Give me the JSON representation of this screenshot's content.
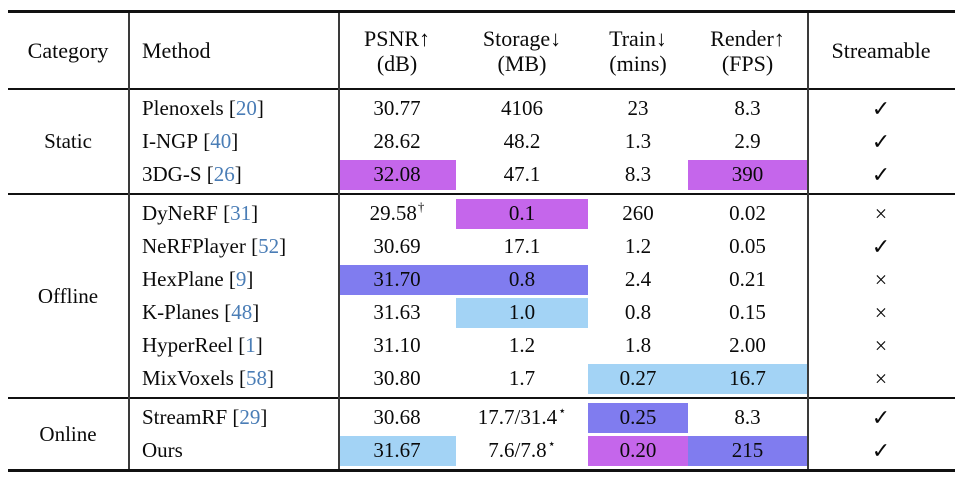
{
  "table": {
    "columns": [
      {
        "label": "Category",
        "sub": ""
      },
      {
        "label": "Method",
        "sub": ""
      },
      {
        "label": "PSNR↑",
        "sub": "(dB)"
      },
      {
        "label": "Storage↓",
        "sub": "(MB)"
      },
      {
        "label": "Train↓",
        "sub": "(mins)"
      },
      {
        "label": "Render↑",
        "sub": "(FPS)"
      },
      {
        "label": "Streamable",
        "sub": ""
      }
    ],
    "colors": {
      "best": "#c566eb",
      "second": "#807cef",
      "third": "#a3d3f5",
      "citation": "#4a7db6"
    },
    "symbols": {
      "check": "✓",
      "cross": "×"
    },
    "citation_brackets": [
      "[",
      "]"
    ],
    "groups": [
      {
        "category": "Static",
        "rows": [
          {
            "method": "Plenoxels",
            "cite": "20",
            "psnr": {
              "text": "30.77",
              "sup": "",
              "hl": null
            },
            "storage": {
              "text": "4106",
              "sup": "",
              "hl": null
            },
            "train": {
              "text": "23",
              "sup": "",
              "hl": null
            },
            "render": {
              "text": "8.3",
              "sup": "",
              "hl": null
            },
            "streamable": "check"
          },
          {
            "method": "I-NGP",
            "cite": "40",
            "psnr": {
              "text": "28.62",
              "sup": "",
              "hl": null
            },
            "storage": {
              "text": "48.2",
              "sup": "",
              "hl": null
            },
            "train": {
              "text": "1.3",
              "sup": "",
              "hl": null
            },
            "render": {
              "text": "2.9",
              "sup": "",
              "hl": null
            },
            "streamable": "check"
          },
          {
            "method": "3DG-S",
            "cite": "26",
            "psnr": {
              "text": "32.08",
              "sup": "",
              "hl": "best"
            },
            "storage": {
              "text": "47.1",
              "sup": "",
              "hl": null
            },
            "train": {
              "text": "8.3",
              "sup": "",
              "hl": null
            },
            "render": {
              "text": "390",
              "sup": "",
              "hl": "best"
            },
            "streamable": "check"
          }
        ]
      },
      {
        "category": "Offline",
        "rows": [
          {
            "method": "DyNeRF",
            "cite": "31",
            "psnr": {
              "text": "29.58",
              "sup": "†",
              "hl": null
            },
            "storage": {
              "text": "0.1",
              "sup": "",
              "hl": "best"
            },
            "train": {
              "text": "260",
              "sup": "",
              "hl": null
            },
            "render": {
              "text": "0.02",
              "sup": "",
              "hl": null
            },
            "streamable": "cross"
          },
          {
            "method": "NeRFPlayer",
            "cite": "52",
            "psnr": {
              "text": "30.69",
              "sup": "",
              "hl": null
            },
            "storage": {
              "text": "17.1",
              "sup": "",
              "hl": null
            },
            "train": {
              "text": "1.2",
              "sup": "",
              "hl": null
            },
            "render": {
              "text": "0.05",
              "sup": "",
              "hl": null
            },
            "streamable": "check"
          },
          {
            "method": "HexPlane",
            "cite": "9",
            "psnr": {
              "text": "31.70",
              "sup": "",
              "hl": "second"
            },
            "storage": {
              "text": "0.8",
              "sup": "",
              "hl": "second"
            },
            "train": {
              "text": "2.4",
              "sup": "",
              "hl": null
            },
            "render": {
              "text": "0.21",
              "sup": "",
              "hl": null
            },
            "streamable": "cross"
          },
          {
            "method": "K-Planes",
            "cite": "48",
            "psnr": {
              "text": "31.63",
              "sup": "",
              "hl": null
            },
            "storage": {
              "text": "1.0",
              "sup": "",
              "hl": "third"
            },
            "train": {
              "text": "0.8",
              "sup": "",
              "hl": null
            },
            "render": {
              "text": "0.15",
              "sup": "",
              "hl": null
            },
            "streamable": "cross"
          },
          {
            "method": "HyperReel",
            "cite": "1",
            "psnr": {
              "text": "31.10",
              "sup": "",
              "hl": null
            },
            "storage": {
              "text": "1.2",
              "sup": "",
              "hl": null
            },
            "train": {
              "text": "1.8",
              "sup": "",
              "hl": null
            },
            "render": {
              "text": "2.00",
              "sup": "",
              "hl": null
            },
            "streamable": "cross"
          },
          {
            "method": "MixVoxels",
            "cite": "58",
            "psnr": {
              "text": "30.80",
              "sup": "",
              "hl": null
            },
            "storage": {
              "text": "1.7",
              "sup": "",
              "hl": null
            },
            "train": {
              "text": "0.27",
              "sup": "",
              "hl": "third"
            },
            "render": {
              "text": "16.7",
              "sup": "",
              "hl": "third"
            },
            "streamable": "cross"
          }
        ]
      },
      {
        "category": "Online",
        "rows": [
          {
            "method": "StreamRF",
            "cite": "29",
            "psnr": {
              "text": "30.68",
              "sup": "",
              "hl": null
            },
            "storage": {
              "text": "17.7/31.4",
              "sup": "⋆",
              "hl": null
            },
            "train": {
              "text": "0.25",
              "sup": "",
              "hl": "second"
            },
            "render": {
              "text": "8.3",
              "sup": "",
              "hl": null
            },
            "streamable": "check"
          },
          {
            "method": "Ours",
            "cite": null,
            "psnr": {
              "text": "31.67",
              "sup": "",
              "hl": "third"
            },
            "storage": {
              "text": "7.6/7.8",
              "sup": "⋆",
              "hl": null
            },
            "train": {
              "text": "0.20",
              "sup": "",
              "hl": "best"
            },
            "render": {
              "text": "215",
              "sup": "",
              "hl": "second"
            },
            "streamable": "check"
          }
        ]
      }
    ]
  }
}
